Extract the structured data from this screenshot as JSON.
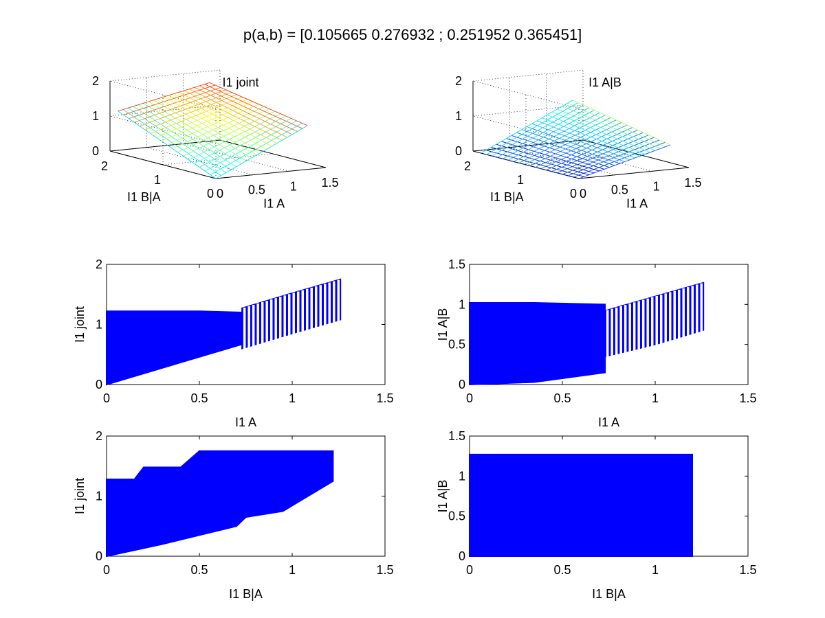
{
  "figure": {
    "suptitle": "p(a,b) = [0.105665 0.276932 ; 0.251952 0.365451]",
    "colors": {
      "scatter": "#0000ff",
      "axis": "#000000",
      "background": "#ffffff"
    }
  },
  "chart_data": [
    {
      "type": "surface",
      "title": "I1 joint",
      "xlabel": "I1 A",
      "ylabel": "I1 B|A",
      "xlim": [
        0,
        1.5
      ],
      "ylim": [
        0,
        2
      ],
      "zlim": [
        0,
        2
      ],
      "xticks": [
        "0",
        "0.5",
        "1",
        "1.5"
      ],
      "yticks": [
        "0",
        "1",
        "2"
      ],
      "zticks": [
        "0",
        "1",
        "2"
      ],
      "grid": true,
      "colormap": "jet",
      "corners": {
        "x0y0": 0.0,
        "x1y0": 1.25,
        "x1y1": 1.75,
        "x0y1": 1.2
      }
    },
    {
      "type": "surface",
      "title": "I1 A|B",
      "xlabel": "I1 A",
      "ylabel": "I1 B|A",
      "xlim": [
        0,
        1.5
      ],
      "ylim": [
        0,
        2
      ],
      "zlim": [
        0,
        2
      ],
      "xticks": [
        "0",
        "0.5",
        "1",
        "1.5"
      ],
      "yticks": [
        "0",
        "1",
        "2"
      ],
      "zticks": [
        "0",
        "1",
        "2"
      ],
      "grid": true,
      "colormap": "jet",
      "corners": {
        "x0y0": 0.0,
        "x1y0": 0.7,
        "x1y1": 1.25,
        "x0y1": 0.0
      }
    },
    {
      "type": "scatter",
      "title": "",
      "xlabel": "I1 A",
      "ylabel": "I1 joint",
      "xlim": [
        0,
        1.5
      ],
      "ylim": [
        0,
        2
      ],
      "xticks": [
        "0",
        "0.5",
        "1",
        "1.5"
      ],
      "yticks": [
        "0",
        "1",
        "2"
      ],
      "grid": false,
      "series": [
        {
          "x": [
            0,
            0.25,
            0.5,
            0.73
          ],
          "y_min": [
            0,
            0.23,
            0.46,
            0.67
          ],
          "y_max": [
            1.22,
            1.22,
            1.22,
            1.2
          ]
        },
        {
          "x": [
            0.73,
            1.0,
            1.26
          ],
          "y_min": [
            0.6,
            0.85,
            1.08
          ],
          "y_max": [
            1.27,
            1.52,
            1.75
          ]
        }
      ]
    },
    {
      "type": "scatter",
      "title": "",
      "xlabel": "I1 A",
      "ylabel": "I1 A|B",
      "xlim": [
        0,
        1.5
      ],
      "ylim": [
        0,
        1.5
      ],
      "xticks": [
        "0",
        "0.5",
        "1",
        "1.5"
      ],
      "yticks": [
        "0",
        "0.5",
        "1",
        "1.5"
      ],
      "grid": false,
      "series": [
        {
          "x": [
            0,
            0.35,
            0.73
          ],
          "y_min": [
            0,
            0.03,
            0.15
          ],
          "y_max": [
            1.02,
            1.02,
            1.0
          ]
        },
        {
          "x": [
            0.73,
            1.0,
            1.26
          ],
          "y_min": [
            0.35,
            0.5,
            0.68
          ],
          "y_max": [
            0.92,
            1.1,
            1.27
          ]
        }
      ]
    },
    {
      "type": "scatter",
      "title": "",
      "xlabel": "I1 B|A",
      "ylabel": "I1 joint",
      "xlim": [
        0,
        1.5
      ],
      "ylim": [
        0,
        2
      ],
      "xticks": [
        "0",
        "0.5",
        "1",
        "1.5"
      ],
      "yticks": [
        "0",
        "1",
        "2"
      ],
      "grid": false,
      "series": [
        {
          "upper": {
            "x": [
              0,
              0.15,
              0.2,
              0.4,
              0.5,
              1.22
            ],
            "y": [
              1.28,
              1.28,
              1.48,
              1.48,
              1.75,
              1.75
            ]
          },
          "lower": {
            "x": [
              0,
              0.3,
              0.7,
              0.75,
              0.95,
              1.22
            ],
            "y": [
              0,
              0.2,
              0.5,
              0.65,
              0.75,
              1.25
            ]
          }
        }
      ]
    },
    {
      "type": "scatter",
      "title": "",
      "xlabel": "I1 B|A",
      "ylabel": "I1 A|B",
      "xlim": [
        0,
        1.5
      ],
      "ylim": [
        0,
        1.5
      ],
      "xticks": [
        "0",
        "0.5",
        "1",
        "1.5"
      ],
      "yticks": [
        "0",
        "0.5",
        "1",
        "1.5"
      ],
      "grid": false,
      "series": [
        {
          "x": [
            0,
            1.2
          ],
          "y_min": [
            0,
            0
          ],
          "y_max": [
            1.27,
            1.27
          ]
        }
      ]
    }
  ]
}
